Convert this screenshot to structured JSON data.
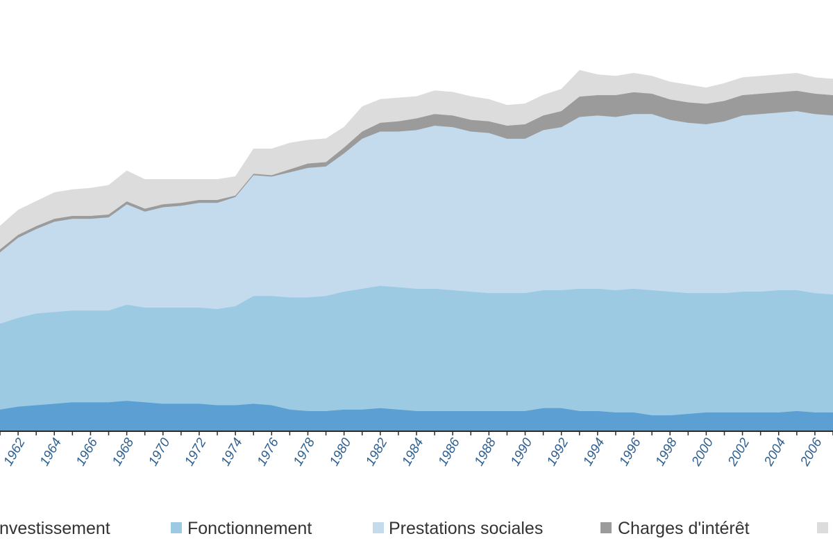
{
  "chart_data": {
    "type": "area",
    "stacked": true,
    "title": "",
    "xlabel": "",
    "ylabel": "",
    "x": [
      1961,
      1962,
      1963,
      1964,
      1965,
      1966,
      1967,
      1968,
      1969,
      1970,
      1971,
      1972,
      1973,
      1974,
      1975,
      1976,
      1977,
      1978,
      1979,
      1980,
      1981,
      1982,
      1983,
      1984,
      1985,
      1986,
      1987,
      1988,
      1989,
      1990,
      1991,
      1992,
      1993,
      1994,
      1995,
      1996,
      1997,
      1998,
      1999,
      2000,
      2001,
      2002,
      2003,
      2004,
      2005,
      2006,
      2007
    ],
    "xlim": [
      1961,
      2007
    ],
    "x_tick_labels": [
      "1962",
      "1964",
      "1966",
      "1968",
      "1970",
      "1972",
      "1974",
      "1976",
      "1978",
      "1980",
      "1982",
      "1984",
      "1986",
      "1988",
      "1990",
      "1992",
      "1994",
      "1996",
      "1998",
      "2000",
      "2002",
      "2004",
      "2006"
    ],
    "ylim": [
      0,
      27
    ],
    "grid": false,
    "legend_position": "bottom",
    "series": [
      {
        "name": "Investissement",
        "color": "#5b9fd3",
        "values": [
          1.5,
          1.7,
          1.8,
          1.9,
          2.0,
          2.0,
          2.0,
          2.1,
          2.0,
          1.9,
          1.9,
          1.9,
          1.8,
          1.8,
          1.9,
          1.8,
          1.5,
          1.4,
          1.4,
          1.5,
          1.5,
          1.6,
          1.5,
          1.4,
          1.4,
          1.4,
          1.4,
          1.4,
          1.4,
          1.4,
          1.6,
          1.6,
          1.4,
          1.4,
          1.3,
          1.3,
          1.1,
          1.1,
          1.2,
          1.3,
          1.3,
          1.3,
          1.3,
          1.3,
          1.4,
          1.3,
          1.3
        ]
      },
      {
        "name": "Fonctionnement",
        "color": "#9ccae3",
        "values": [
          5.9,
          6.1,
          6.3,
          6.3,
          6.3,
          6.3,
          6.3,
          6.6,
          6.5,
          6.6,
          6.6,
          6.6,
          6.6,
          6.8,
          7.4,
          7.5,
          7.7,
          7.8,
          7.9,
          8.1,
          8.3,
          8.4,
          8.4,
          8.4,
          8.4,
          8.3,
          8.2,
          8.1,
          8.1,
          8.1,
          8.1,
          8.1,
          8.4,
          8.4,
          8.4,
          8.5,
          8.6,
          8.5,
          8.3,
          8.2,
          8.2,
          8.3,
          8.3,
          8.4,
          8.3,
          8.2,
          8.1
        ]
      },
      {
        "name": "Prestations sociales",
        "color": "#c4dbee",
        "values": [
          4.9,
          5.5,
          5.8,
          6.2,
          6.3,
          6.3,
          6.4,
          6.9,
          6.6,
          6.9,
          7.0,
          7.2,
          7.3,
          7.5,
          8.3,
          8.2,
          8.6,
          8.9,
          8.9,
          9.5,
          10.3,
          10.6,
          10.7,
          10.9,
          11.2,
          11.2,
          11.0,
          11.0,
          10.6,
          10.6,
          11.0,
          11.2,
          11.8,
          11.9,
          11.9,
          12.0,
          12.1,
          11.8,
          11.7,
          11.6,
          11.8,
          12.1,
          12.2,
          12.2,
          12.3,
          12.3,
          12.3
        ]
      },
      {
        "name": "Charges d'intérêt",
        "color": "#9b9b9b",
        "values": [
          0.2,
          0.2,
          0.2,
          0.2,
          0.2,
          0.2,
          0.2,
          0.2,
          0.2,
          0.2,
          0.2,
          0.2,
          0.2,
          0.1,
          0.1,
          0.1,
          0.2,
          0.3,
          0.3,
          0.4,
          0.5,
          0.6,
          0.7,
          0.8,
          0.8,
          0.8,
          0.8,
          0.8,
          0.9,
          1.0,
          1.0,
          1.1,
          1.4,
          1.4,
          1.5,
          1.5,
          1.4,
          1.4,
          1.4,
          1.4,
          1.4,
          1.4,
          1.4,
          1.4,
          1.4,
          1.4,
          1.4
        ]
      },
      {
        "name": "",
        "color": "#dcdcdc",
        "values": [
          1.6,
          1.7,
          1.7,
          1.8,
          1.8,
          1.9,
          2.0,
          2.1,
          2.0,
          1.7,
          1.6,
          1.4,
          1.4,
          1.3,
          1.7,
          1.8,
          1.8,
          1.6,
          1.6,
          1.4,
          1.7,
          1.6,
          1.6,
          1.5,
          1.6,
          1.6,
          1.6,
          1.5,
          1.4,
          1.4,
          1.4,
          1.5,
          1.8,
          1.4,
          1.3,
          1.3,
          1.2,
          1.2,
          1.2,
          1.1,
          1.2,
          1.2,
          1.2,
          1.2,
          1.2,
          1.1,
          1.1
        ]
      }
    ]
  },
  "legend": {
    "items": [
      {
        "label": "Investissement",
        "color": "#5b9fd3"
      },
      {
        "label": "Fonctionnement",
        "color": "#9ccae3"
      },
      {
        "label": "Prestations sociales",
        "color": "#c4dbee"
      },
      {
        "label": "Charges d'intérêt",
        "color": "#9b9b9b"
      },
      {
        "label": "",
        "color": "#dcdcdc"
      }
    ]
  }
}
